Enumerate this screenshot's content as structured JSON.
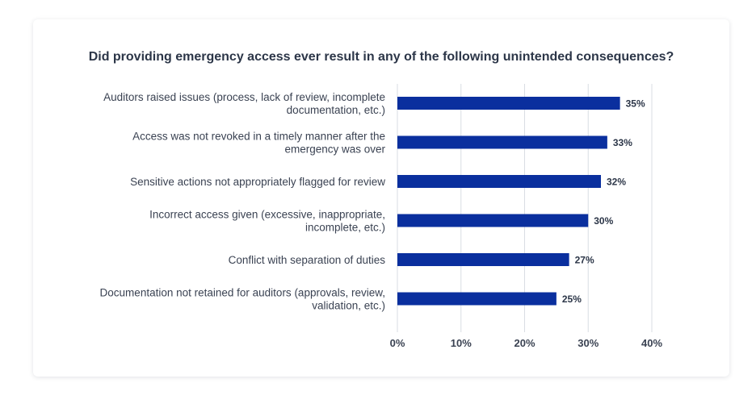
{
  "chart_data": {
    "type": "bar",
    "orientation": "horizontal",
    "title": "Did providing emergency access ever result in any of the following unintended consequences?",
    "categories": [
      [
        "Auditors raised issues (process, lack of review, incomplete",
        "documentation, etc.)"
      ],
      [
        "Access was not revoked in a timely manner after the",
        "emergency was over"
      ],
      [
        "Sensitive actions not appropriately flagged for review"
      ],
      [
        "Incorrect access given (excessive, inappropriate,",
        "incomplete, etc.)"
      ],
      [
        "Conflict with separation of duties"
      ],
      [
        "Documentation not retained for auditors (approvals, review,",
        "validation, etc.)"
      ]
    ],
    "values": [
      35,
      33,
      32,
      30,
      27,
      25
    ],
    "value_labels": [
      "35%",
      "33%",
      "32%",
      "30%",
      "27%",
      "25%"
    ],
    "xlim": [
      0,
      40
    ],
    "xticks": [
      0,
      10,
      20,
      30,
      40
    ],
    "xtick_labels": [
      "0%",
      "10%",
      "20%",
      "30%",
      "40%"
    ],
    "xlabel": "",
    "ylabel": "",
    "grid": true,
    "bar_color": "#0a2f9e"
  }
}
